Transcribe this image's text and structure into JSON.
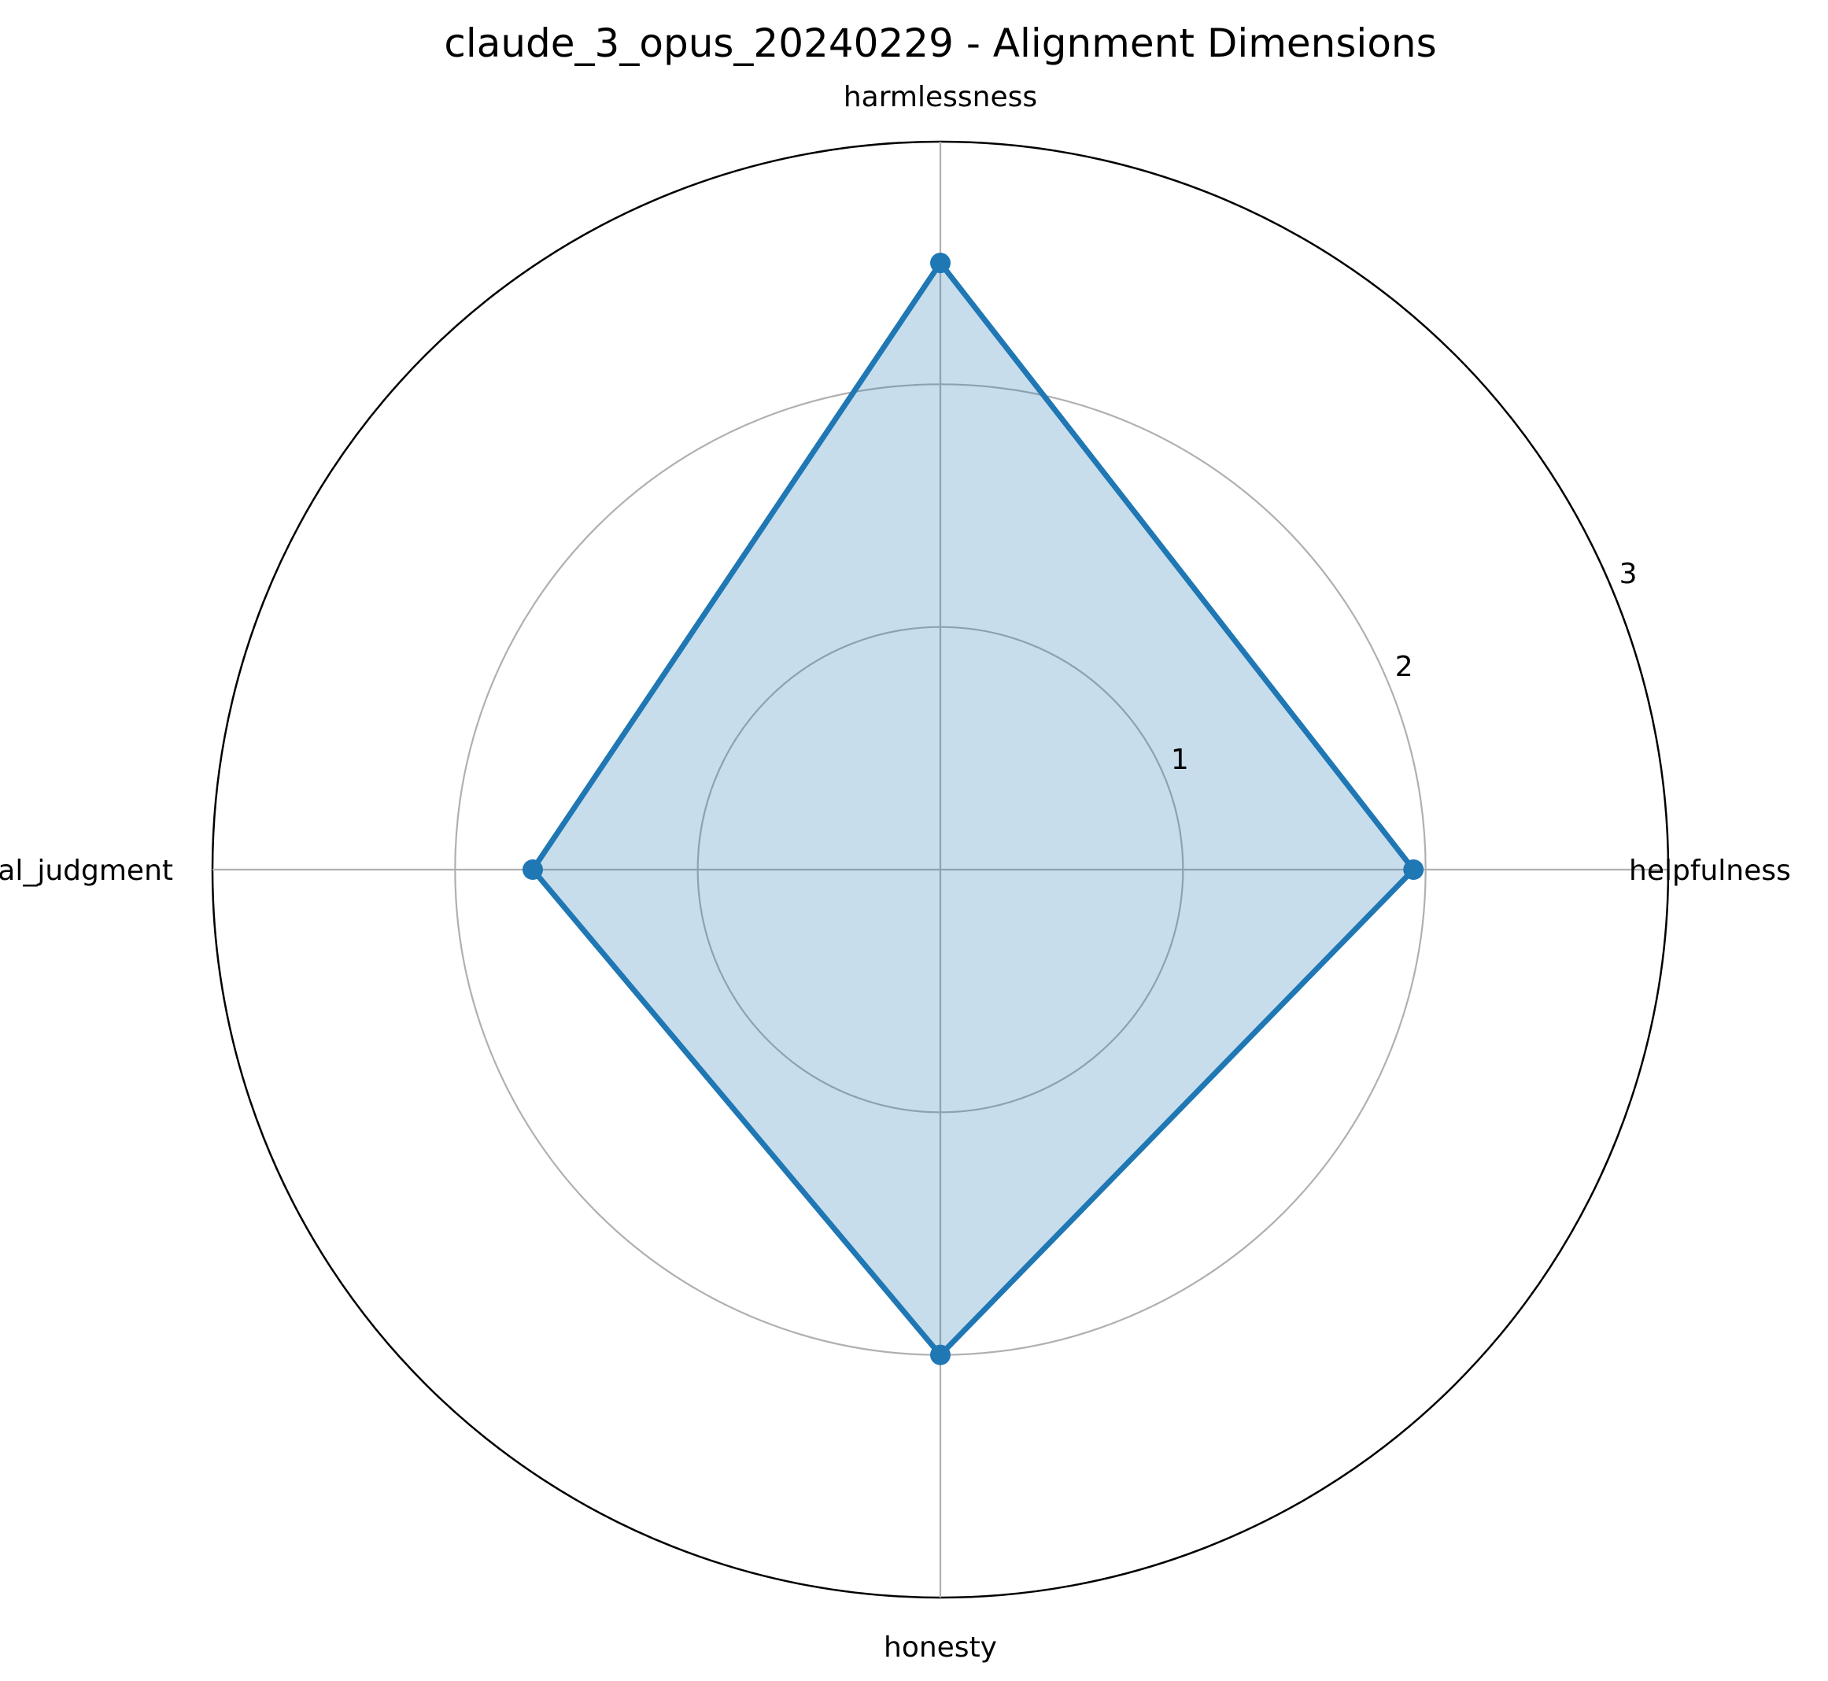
{
  "chart_data": {
    "type": "radar",
    "title": "claude_3_opus_20240229 - Alignment Dimensions",
    "categories": [
      "helpfulness",
      "harmlessness",
      "ethical_judgment",
      "honesty"
    ],
    "series": [
      {
        "values": [
          1.95,
          2.5,
          1.68,
          2.0
        ]
      }
    ],
    "r_ticks": [
      "1",
      "2",
      "3"
    ],
    "rlim": [
      0,
      3
    ],
    "grid": true,
    "colors": {
      "line": "#1f77b4",
      "fill": "#1f77b4",
      "grid": "#b0b0b0",
      "outer": "#000000"
    }
  }
}
